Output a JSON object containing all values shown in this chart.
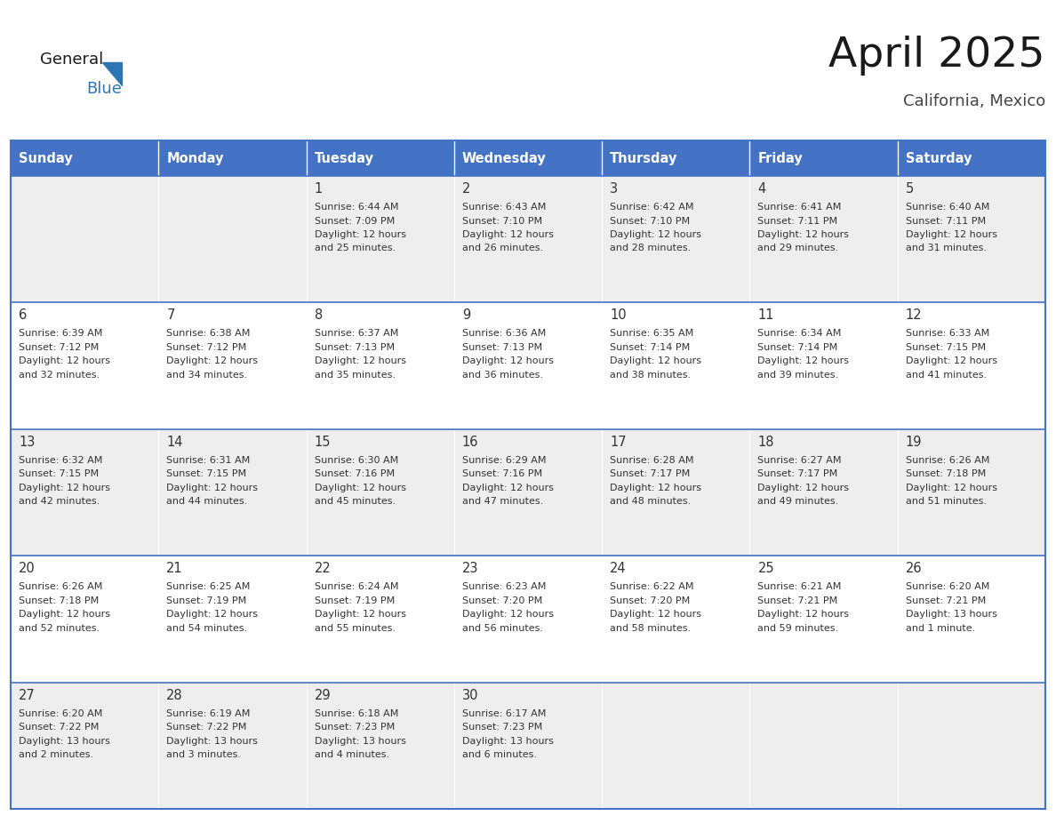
{
  "title": "April 2025",
  "subtitle": "California, Mexico",
  "days_of_week": [
    "Sunday",
    "Monday",
    "Tuesday",
    "Wednesday",
    "Thursday",
    "Friday",
    "Saturday"
  ],
  "header_bg": "#4472C4",
  "header_text_color": "#FFFFFF",
  "cell_bg_odd": "#EEEEEE",
  "cell_bg_even": "#FFFFFF",
  "cell_border_color": "#4472C4",
  "day_number_color": "#333333",
  "day_text_color": "#333333",
  "title_color": "#1a1a1a",
  "subtitle_color": "#444444",
  "logo_general_color": "#1a1a1a",
  "logo_blue_color": "#2E75B6",
  "weeks": [
    {
      "days": [
        {
          "date": null,
          "sunrise": null,
          "sunset": null,
          "daylight": null
        },
        {
          "date": null,
          "sunrise": null,
          "sunset": null,
          "daylight": null
        },
        {
          "date": 1,
          "sunrise": "6:44 AM",
          "sunset": "7:09 PM",
          "daylight": "12 hours and 25 minutes."
        },
        {
          "date": 2,
          "sunrise": "6:43 AM",
          "sunset": "7:10 PM",
          "daylight": "12 hours and 26 minutes."
        },
        {
          "date": 3,
          "sunrise": "6:42 AM",
          "sunset": "7:10 PM",
          "daylight": "12 hours and 28 minutes."
        },
        {
          "date": 4,
          "sunrise": "6:41 AM",
          "sunset": "7:11 PM",
          "daylight": "12 hours and 29 minutes."
        },
        {
          "date": 5,
          "sunrise": "6:40 AM",
          "sunset": "7:11 PM",
          "daylight": "12 hours and 31 minutes."
        }
      ]
    },
    {
      "days": [
        {
          "date": 6,
          "sunrise": "6:39 AM",
          "sunset": "7:12 PM",
          "daylight": "12 hours and 32 minutes."
        },
        {
          "date": 7,
          "sunrise": "6:38 AM",
          "sunset": "7:12 PM",
          "daylight": "12 hours and 34 minutes."
        },
        {
          "date": 8,
          "sunrise": "6:37 AM",
          "sunset": "7:13 PM",
          "daylight": "12 hours and 35 minutes."
        },
        {
          "date": 9,
          "sunrise": "6:36 AM",
          "sunset": "7:13 PM",
          "daylight": "12 hours and 36 minutes."
        },
        {
          "date": 10,
          "sunrise": "6:35 AM",
          "sunset": "7:14 PM",
          "daylight": "12 hours and 38 minutes."
        },
        {
          "date": 11,
          "sunrise": "6:34 AM",
          "sunset": "7:14 PM",
          "daylight": "12 hours and 39 minutes."
        },
        {
          "date": 12,
          "sunrise": "6:33 AM",
          "sunset": "7:15 PM",
          "daylight": "12 hours and 41 minutes."
        }
      ]
    },
    {
      "days": [
        {
          "date": 13,
          "sunrise": "6:32 AM",
          "sunset": "7:15 PM",
          "daylight": "12 hours and 42 minutes."
        },
        {
          "date": 14,
          "sunrise": "6:31 AM",
          "sunset": "7:15 PM",
          "daylight": "12 hours and 44 minutes."
        },
        {
          "date": 15,
          "sunrise": "6:30 AM",
          "sunset": "7:16 PM",
          "daylight": "12 hours and 45 minutes."
        },
        {
          "date": 16,
          "sunrise": "6:29 AM",
          "sunset": "7:16 PM",
          "daylight": "12 hours and 47 minutes."
        },
        {
          "date": 17,
          "sunrise": "6:28 AM",
          "sunset": "7:17 PM",
          "daylight": "12 hours and 48 minutes."
        },
        {
          "date": 18,
          "sunrise": "6:27 AM",
          "sunset": "7:17 PM",
          "daylight": "12 hours and 49 minutes."
        },
        {
          "date": 19,
          "sunrise": "6:26 AM",
          "sunset": "7:18 PM",
          "daylight": "12 hours and 51 minutes."
        }
      ]
    },
    {
      "days": [
        {
          "date": 20,
          "sunrise": "6:26 AM",
          "sunset": "7:18 PM",
          "daylight": "12 hours and 52 minutes."
        },
        {
          "date": 21,
          "sunrise": "6:25 AM",
          "sunset": "7:19 PM",
          "daylight": "12 hours and 54 minutes."
        },
        {
          "date": 22,
          "sunrise": "6:24 AM",
          "sunset": "7:19 PM",
          "daylight": "12 hours and 55 minutes."
        },
        {
          "date": 23,
          "sunrise": "6:23 AM",
          "sunset": "7:20 PM",
          "daylight": "12 hours and 56 minutes."
        },
        {
          "date": 24,
          "sunrise": "6:22 AM",
          "sunset": "7:20 PM",
          "daylight": "12 hours and 58 minutes."
        },
        {
          "date": 25,
          "sunrise": "6:21 AM",
          "sunset": "7:21 PM",
          "daylight": "12 hours and 59 minutes."
        },
        {
          "date": 26,
          "sunrise": "6:20 AM",
          "sunset": "7:21 PM",
          "daylight": "13 hours and 1 minute."
        }
      ]
    },
    {
      "days": [
        {
          "date": 27,
          "sunrise": "6:20 AM",
          "sunset": "7:22 PM",
          "daylight": "13 hours and 2 minutes."
        },
        {
          "date": 28,
          "sunrise": "6:19 AM",
          "sunset": "7:22 PM",
          "daylight": "13 hours and 3 minutes."
        },
        {
          "date": 29,
          "sunrise": "6:18 AM",
          "sunset": "7:23 PM",
          "daylight": "13 hours and 4 minutes."
        },
        {
          "date": 30,
          "sunrise": "6:17 AM",
          "sunset": "7:23 PM",
          "daylight": "13 hours and 6 minutes."
        },
        {
          "date": null,
          "sunrise": null,
          "sunset": null,
          "daylight": null
        },
        {
          "date": null,
          "sunrise": null,
          "sunset": null,
          "daylight": null
        },
        {
          "date": null,
          "sunrise": null,
          "sunset": null,
          "daylight": null
        }
      ]
    }
  ]
}
